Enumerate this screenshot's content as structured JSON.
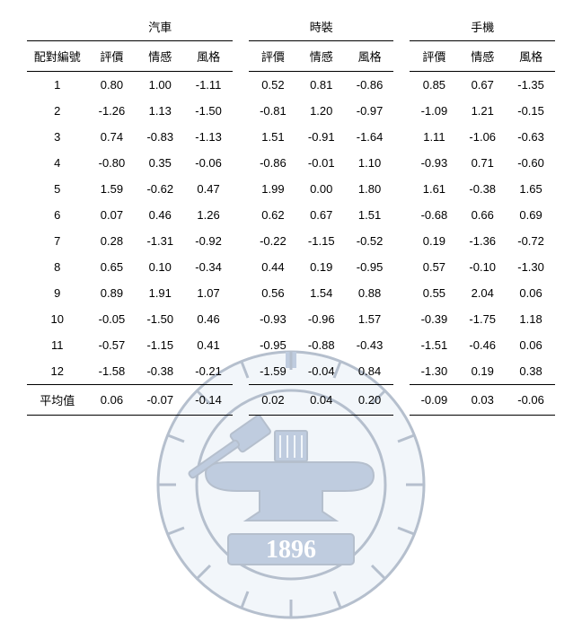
{
  "table": {
    "row_header": "配對編號",
    "avg_label": "平均值",
    "groups": [
      {
        "name": "汽車",
        "cols": [
          "評價",
          "情感",
          "風格"
        ]
      },
      {
        "name": "時裝",
        "cols": [
          "評價",
          "情感",
          "風格"
        ]
      },
      {
        "name": "手機",
        "cols": [
          "評價",
          "情感",
          "風格"
        ]
      }
    ],
    "rows": [
      {
        "id": "1",
        "v": [
          "0.80",
          "1.00",
          "-1.11",
          "0.52",
          "0.81",
          "-0.86",
          "0.85",
          "0.67",
          "-1.35"
        ]
      },
      {
        "id": "2",
        "v": [
          "-1.26",
          "1.13",
          "-1.50",
          "-0.81",
          "1.20",
          "-0.97",
          "-1.09",
          "1.21",
          "-0.15"
        ]
      },
      {
        "id": "3",
        "v": [
          "0.74",
          "-0.83",
          "-1.13",
          "1.51",
          "-0.91",
          "-1.64",
          "1.11",
          "-1.06",
          "-0.63"
        ]
      },
      {
        "id": "4",
        "v": [
          "-0.80",
          "0.35",
          "-0.06",
          "-0.86",
          "-0.01",
          "1.10",
          "-0.93",
          "0.71",
          "-0.60"
        ]
      },
      {
        "id": "5",
        "v": [
          "1.59",
          "-0.62",
          "0.47",
          "1.99",
          "0.00",
          "1.80",
          "1.61",
          "-0.38",
          "1.65"
        ]
      },
      {
        "id": "6",
        "v": [
          "0.07",
          "0.46",
          "1.26",
          "0.62",
          "0.67",
          "1.51",
          "-0.68",
          "0.66",
          "0.69"
        ]
      },
      {
        "id": "7",
        "v": [
          "0.28",
          "-1.31",
          "-0.92",
          "-0.22",
          "-1.15",
          "-0.52",
          "0.19",
          "-1.36",
          "-0.72"
        ]
      },
      {
        "id": "8",
        "v": [
          "0.65",
          "0.10",
          "-0.34",
          "0.44",
          "0.19",
          "-0.95",
          "0.57",
          "-0.10",
          "-1.30"
        ]
      },
      {
        "id": "9",
        "v": [
          "0.89",
          "1.91",
          "1.07",
          "0.56",
          "1.54",
          "0.88",
          "0.55",
          "2.04",
          "0.06"
        ]
      },
      {
        "id": "10",
        "v": [
          "-0.05",
          "-1.50",
          "0.46",
          "-0.93",
          "-0.96",
          "1.57",
          "-0.39",
          "-1.75",
          "1.18"
        ]
      },
      {
        "id": "11",
        "v": [
          "-0.57",
          "-1.15",
          "0.41",
          "-0.95",
          "-0.88",
          "-0.43",
          "-1.51",
          "-0.46",
          "0.06"
        ]
      },
      {
        "id": "12",
        "v": [
          "-1.58",
          "-0.38",
          "-0.21",
          "-1.59",
          "-0.04",
          "0.84",
          "-1.30",
          "0.19",
          "0.38"
        ]
      }
    ],
    "avg": [
      "0.06",
      "-0.07",
      "-0.14",
      "0.02",
      "0.04",
      "0.20",
      "-0.09",
      "0.03",
      "-0.06"
    ]
  },
  "watermark": {
    "year": "1896",
    "fill": "#4a6fa5",
    "stroke": "#2d4a73",
    "circle_r1": 150,
    "circle_r2": 105,
    "bg": "#dbe6f3"
  }
}
